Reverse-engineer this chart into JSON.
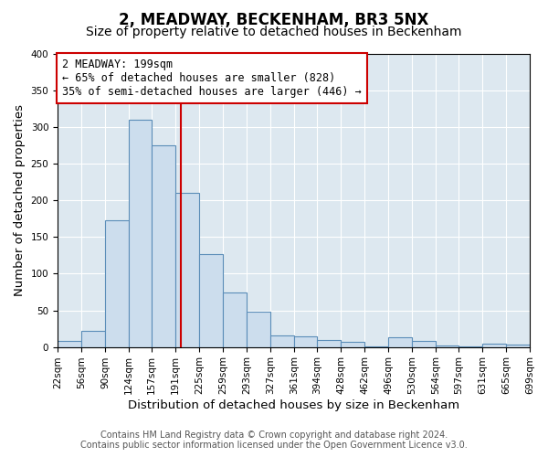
{
  "title": "2, MEADWAY, BECKENHAM, BR3 5NX",
  "subtitle": "Size of property relative to detached houses in Beckenham",
  "xlabel": "Distribution of detached houses by size in Beckenham",
  "ylabel": "Number of detached properties",
  "bin_edges": [
    22,
    56,
    90,
    124,
    157,
    191,
    225,
    259,
    293,
    327,
    361,
    394,
    428,
    462,
    496,
    530,
    564,
    597,
    631,
    665,
    699
  ],
  "bin_heights": [
    8,
    22,
    173,
    310,
    275,
    210,
    127,
    74,
    48,
    16,
    15,
    10,
    7,
    1,
    13,
    8,
    2,
    1,
    5,
    3
  ],
  "bar_facecolor": "#ccdded",
  "bar_edgecolor": "#5b8db8",
  "vline_x": 199,
  "vline_color": "#cc0000",
  "annotation_text_line1": "2 MEADWAY: 199sqm",
  "annotation_text_line2": "← 65% of detached houses are smaller (828)",
  "annotation_text_line3": "35% of semi-detached houses are larger (446) →",
  "box_edgecolor": "#cc0000",
  "ylim": [
    0,
    400
  ],
  "yticks": [
    0,
    50,
    100,
    150,
    200,
    250,
    300,
    350,
    400
  ],
  "tick_labels": [
    "22sqm",
    "56sqm",
    "90sqm",
    "124sqm",
    "157sqm",
    "191sqm",
    "225sqm",
    "259sqm",
    "293sqm",
    "327sqm",
    "361sqm",
    "394sqm",
    "428sqm",
    "462sqm",
    "496sqm",
    "530sqm",
    "564sqm",
    "597sqm",
    "631sqm",
    "665sqm",
    "699sqm"
  ],
  "footer_line1": "Contains HM Land Registry data © Crown copyright and database right 2024.",
  "footer_line2": "Contains public sector information licensed under the Open Government Licence v3.0.",
  "fig_bg_color": "#ffffff",
  "plot_bg_color": "#dde8f0",
  "grid_color": "#ffffff",
  "title_fontsize": 12,
  "subtitle_fontsize": 10,
  "axis_label_fontsize": 9.5,
  "tick_fontsize": 7.5,
  "footer_fontsize": 7,
  "annotation_fontsize": 8.5
}
